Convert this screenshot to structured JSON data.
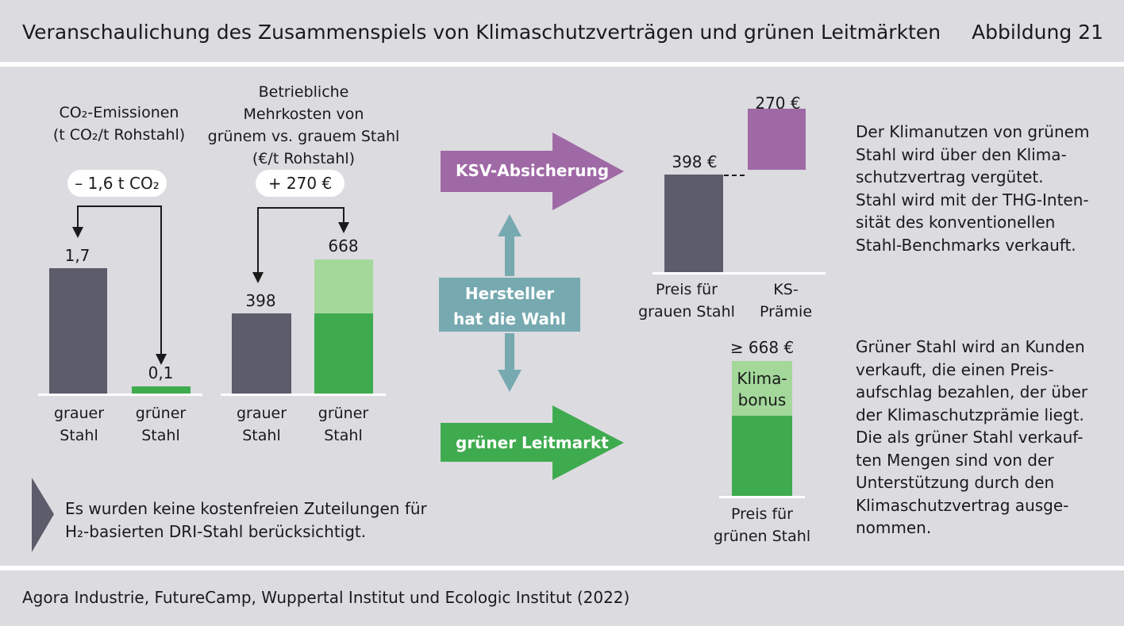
{
  "header": {
    "title": "Veranschaulichung des Zusammenspiels von Klimaschutzverträgen und grünen Leitmärkten",
    "figure": "Abbildung 21"
  },
  "chart_data": [
    {
      "type": "bar",
      "title": "CO₂-Emissionen",
      "unit": "(t CO₂/t Rohstahl)",
      "categories": [
        "grauer Stahl",
        "grüner Stahl"
      ],
      "values": [
        1.7,
        0.1
      ],
      "value_labels": [
        "1,7",
        "0,1"
      ],
      "difference_label": "– 1,6 t CO₂",
      "colors": [
        "#5d5c6b",
        "#3fab4f"
      ]
    },
    {
      "type": "bar",
      "title": "Betriebliche Mehrkosten von grünem vs. grauem Stahl",
      "unit": "(€/t Rohstahl)",
      "categories": [
        "grauer Stahl",
        "grüner Stahl"
      ],
      "values": [
        398,
        668
      ],
      "stack_base": [
        398,
        398
      ],
      "stack_extra": [
        0,
        270
      ],
      "value_labels": [
        "398",
        "668"
      ],
      "difference_label": "+ 270 €",
      "colors": [
        "#5d5c6b",
        "#3fab4f",
        "#a3d89a"
      ]
    },
    {
      "type": "bar",
      "categories": [
        "Preis für grauen Stahl",
        "KS-Prämie"
      ],
      "values": [
        398,
        270
      ],
      "value_labels": [
        "398 €",
        "270 €"
      ]
    },
    {
      "type": "bar",
      "categories": [
        "Preis für grünen Stahl"
      ],
      "values": [
        668
      ],
      "value_labels": [
        "≥ 668 €"
      ],
      "segment_label": "Klima-bonus"
    }
  ],
  "left1": {
    "title_lines": [
      "CO₂-Emissionen",
      "(t CO₂/t Rohstahl)"
    ],
    "pill": "– 1,6 t CO₂",
    "cat_lines": [
      [
        "grauer",
        "Stahl"
      ],
      [
        "grüner",
        "Stahl"
      ]
    ]
  },
  "left2": {
    "title_lines": [
      "Betriebliche",
      "Mehrkosten von",
      "grünem vs. grauem Stahl",
      "(€/t Rohstahl)"
    ],
    "pill": "+ 270 €",
    "cat_lines": [
      [
        "grauer",
        "Stahl"
      ],
      [
        "grüner",
        "Stahl"
      ]
    ]
  },
  "middle": {
    "ksv_label": "KSV-Absicherung",
    "green_label": "grüner Leitmarkt",
    "choice_lines": [
      "Hersteller",
      "hat die Wahl"
    ]
  },
  "right_top": {
    "cat_lines": [
      [
        "Preis für",
        "grauen Stahl"
      ],
      [
        "KS-",
        "Prämie"
      ]
    ],
    "text_lines": [
      "Der Klimanutzen von grünem",
      "Stahl wird über den Klima-",
      "schutzvertrag vergütet.",
      "Stahl wird mit der THG-Inten-",
      "sität des konventionellen",
      "Stahl-Benchmarks verkauft."
    ]
  },
  "right_bottom": {
    "bonus_lines": [
      "Klima-",
      "bonus"
    ],
    "cat_lines": [
      "Preis für",
      "grünen Stahl"
    ],
    "text_lines": [
      "Grüner Stahl wird an Kunden",
      "verkauft, die einen Preis-",
      "aufschlag bezahlen, der über",
      "der Klimaschutzprämie liegt.",
      "Die als grüner Stahl verkauf-",
      "ten Mengen sind von der",
      "Unterstützung durch den",
      "Klimaschutzvertrag ausge-",
      "nommen."
    ]
  },
  "note": {
    "lines": [
      "Es wurden keine kostenfreien Zuteilungen für",
      "H₂-basierten DRI-Stahl berücksichtigt."
    ]
  },
  "footer": {
    "source": "Agora Industrie, FutureCamp, Wuppertal Institut und Ecologic Institut (2022)"
  },
  "colors": {
    "background": "#dcdbe0",
    "grey_bar": "#5d5c6b",
    "green": "#3fab4f",
    "light_green": "#a3d89a",
    "purple": "#9f69a6",
    "teal": "#76a9b0"
  }
}
